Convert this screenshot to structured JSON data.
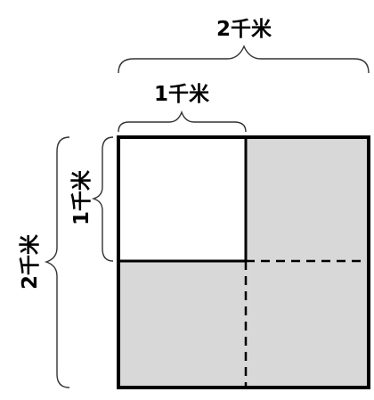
{
  "labels": {
    "top_outer": "2千米",
    "top_inner": "1千米",
    "left_inner": "1千米",
    "left_outer": "2千米"
  },
  "colors": {
    "shaded_fill": "#d8d8d8",
    "white_fill": "#ffffff",
    "outline": "#000000"
  }
}
